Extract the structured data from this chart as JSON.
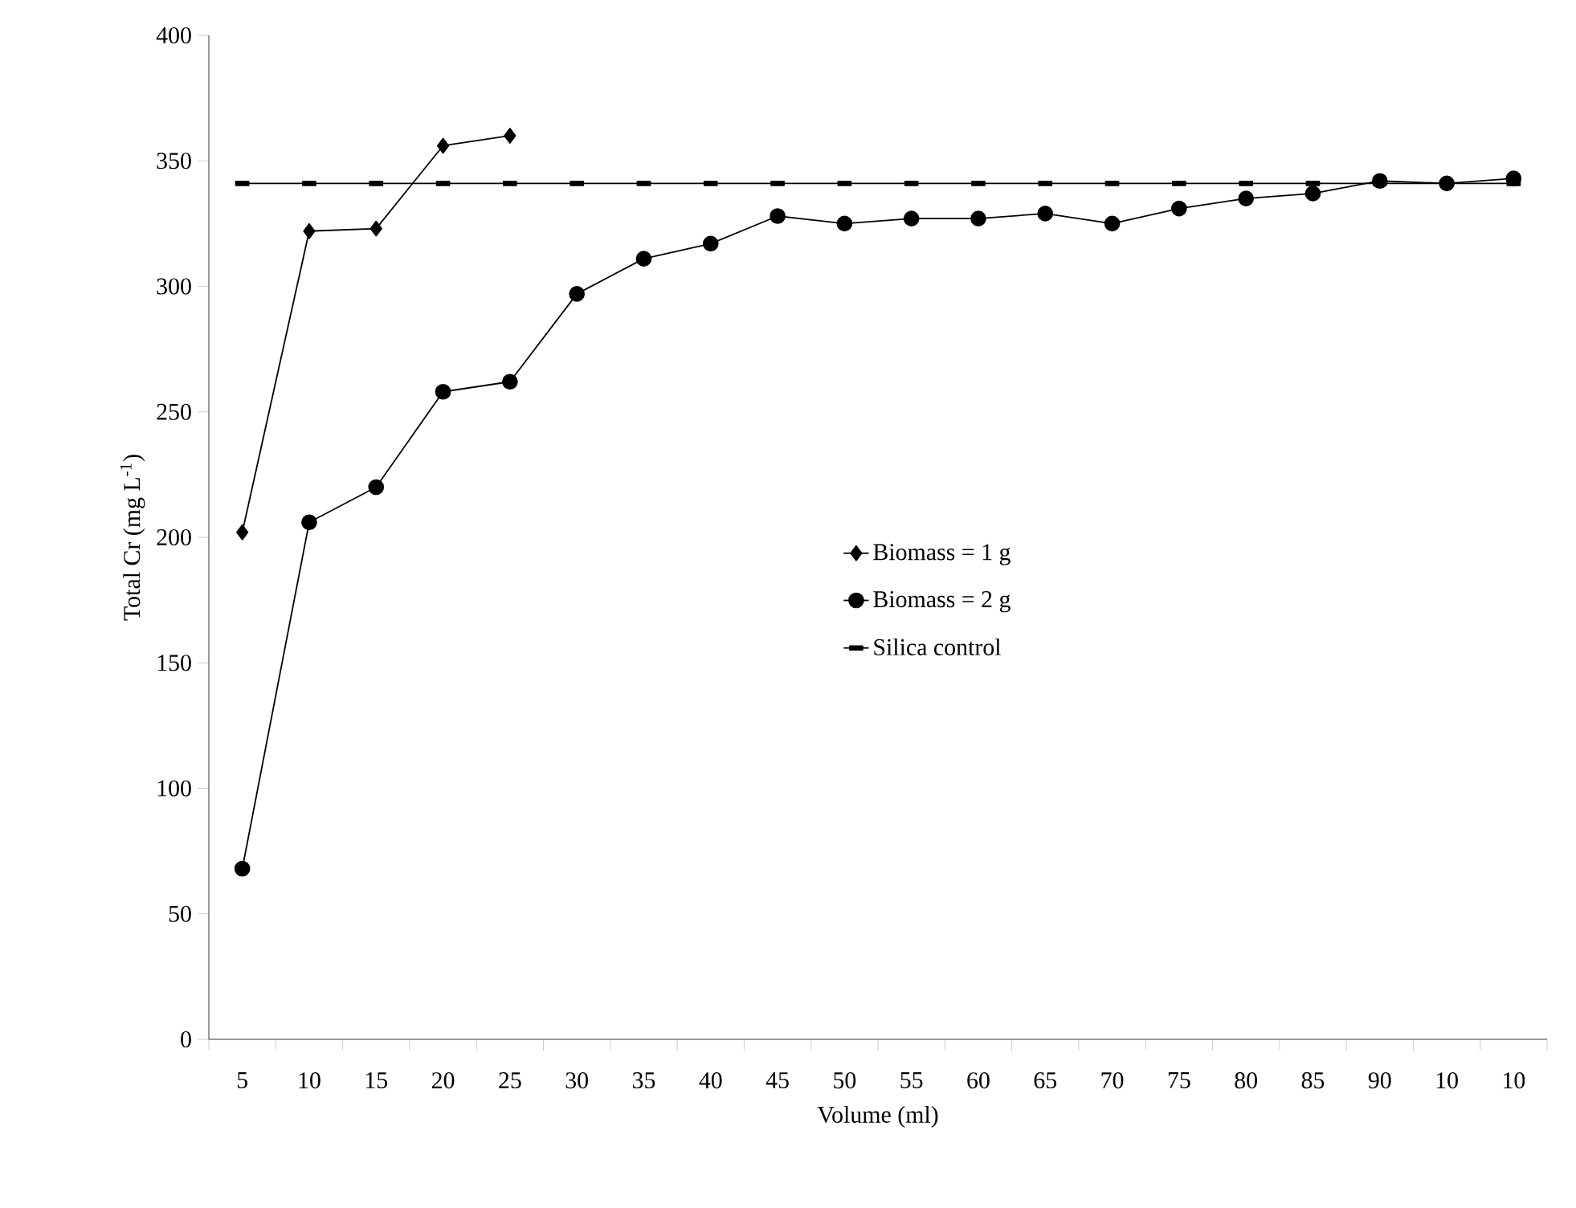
{
  "chart_data": {
    "type": "line",
    "xlabel": "Volume (ml)",
    "ylabel": "Total Cr (mg L$^{-1}$)",
    "categories": [
      "5",
      "10",
      "15",
      "20",
      "25",
      "30",
      "35",
      "40",
      "45",
      "50",
      "55",
      "60",
      "65",
      "70",
      "75",
      "80",
      "85",
      "90",
      "10",
      "10"
    ],
    "ylim": [
      0,
      400
    ],
    "yticks": [
      0,
      50,
      100,
      150,
      200,
      250,
      300,
      350,
      400
    ],
    "grid": false,
    "legend": "center",
    "line_style": "solid",
    "series": [
      {
        "name": "Biomass = 1 g",
        "color": "#000000",
        "marker": "diamond",
        "values": [
          202,
          322,
          323,
          356,
          360,
          null,
          null,
          null,
          null,
          null,
          null,
          null,
          null,
          null,
          null,
          null,
          null,
          null,
          null,
          null
        ]
      },
      {
        "name": "Biomass = 2 g",
        "color": "#000000",
        "marker": "circle",
        "values": [
          68,
          206,
          220,
          258,
          262,
          297,
          311,
          317,
          328,
          325,
          327,
          327,
          329,
          325,
          331,
          335,
          337,
          342,
          341,
          343
        ]
      },
      {
        "name": "Silica control",
        "color": "#000000",
        "marker": "square",
        "values": [
          341,
          341,
          341,
          341,
          341,
          341,
          341,
          341,
          341,
          341,
          341,
          341,
          341,
          341,
          341,
          341,
          341,
          341,
          341,
          341
        ]
      }
    ]
  }
}
